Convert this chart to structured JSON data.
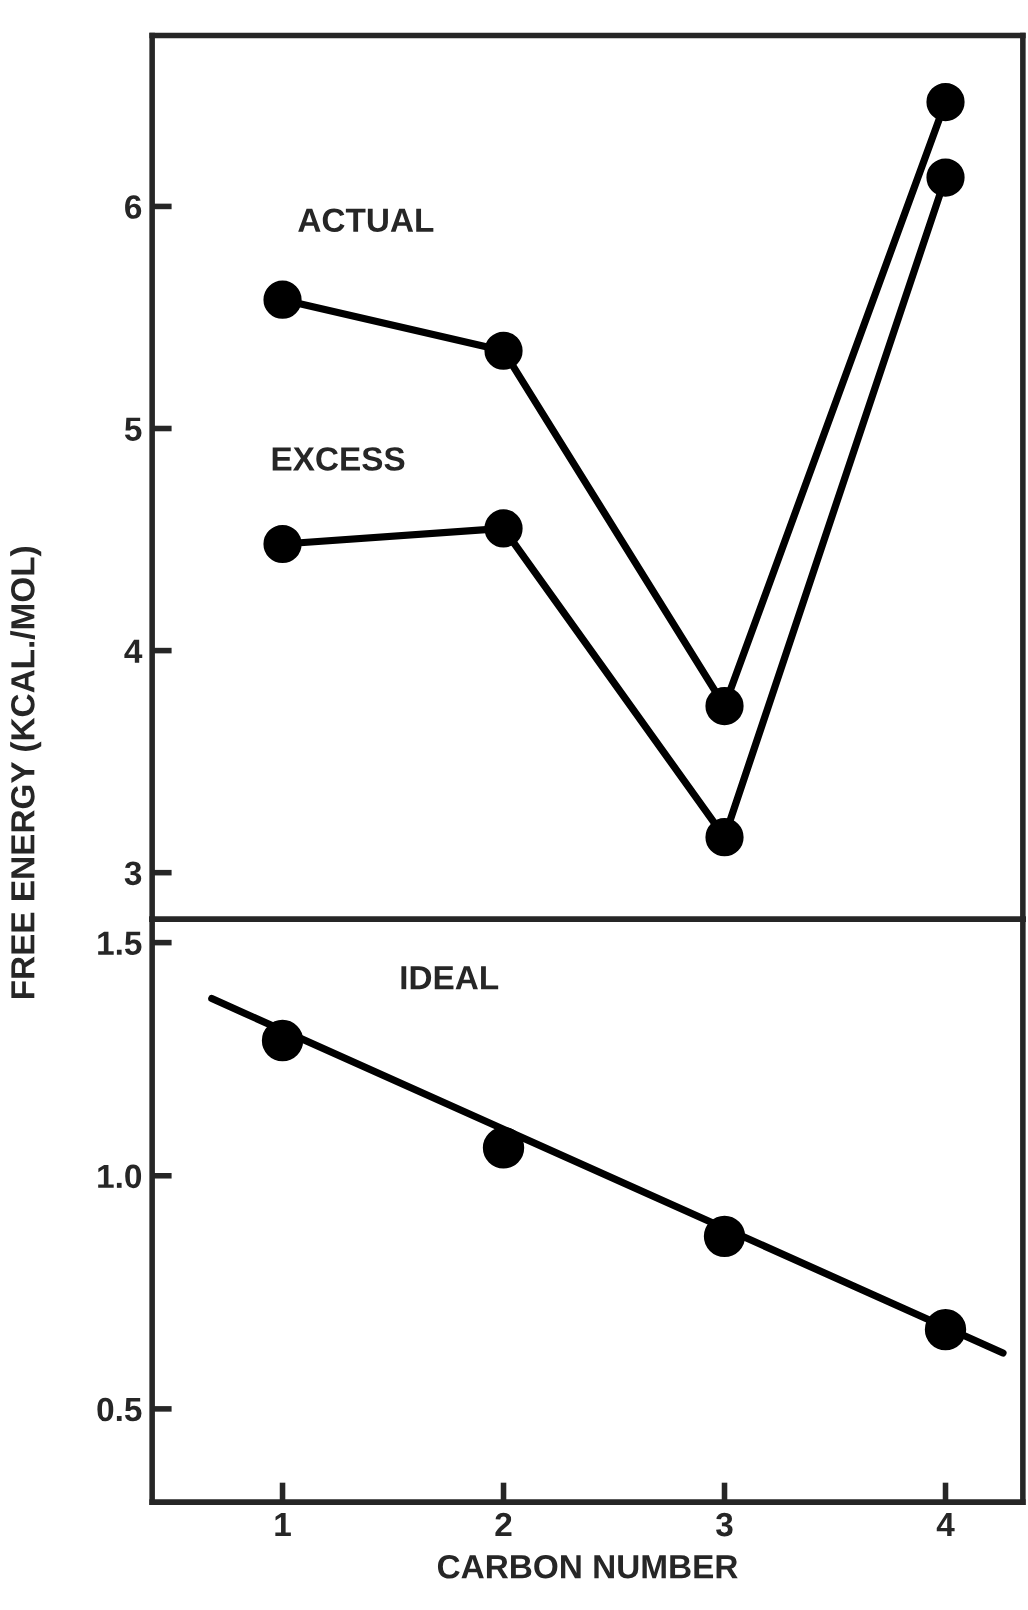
{
  "chart_data": [
    {
      "type": "line",
      "ylabel": "FREE ENERGY (KCAL./MOL)",
      "x": [
        1,
        2,
        3,
        4
      ],
      "xlim": [
        0.41,
        4.35
      ],
      "ylim": [
        2.79,
        6.77
      ],
      "yticks": [
        3,
        4,
        5,
        6
      ],
      "tick_labels": "y",
      "marker": "circle",
      "line_style": "solid",
      "grid": false,
      "legend": false,
      "series": [
        {
          "name": "ACTUAL",
          "color": "#000000",
          "values": [
            5.58,
            5.35,
            3.75,
            6.47
          ]
        },
        {
          "name": "EXCESS",
          "color": "#000000",
          "values": [
            4.48,
            4.55,
            3.16,
            6.13
          ]
        }
      ]
    },
    {
      "type": "scatter",
      "xlabel": "CARBON NUMBER",
      "x": [
        1,
        2,
        3,
        4
      ],
      "xlim": [
        0.41,
        4.35
      ],
      "xticks": [
        1,
        2,
        3,
        4
      ],
      "ylim": [
        0.3,
        1.55
      ],
      "yticks": [
        0.5,
        {
          "value": 1.0,
          "label": "1.0"
        },
        1.5
      ],
      "marker": "circle",
      "grid": false,
      "legend": false,
      "series": [
        {
          "type": "line",
          "x": [
            0.68,
            4.26
          ],
          "color": "#000000",
          "values": [
            1.38,
            0.62
          ],
          "line_style": "solid",
          "marker": "none"
        },
        {
          "name": "IDEAL",
          "color": "#000000",
          "values": [
            1.29,
            1.06,
            0.87,
            0.67
          ]
        }
      ]
    }
  ]
}
